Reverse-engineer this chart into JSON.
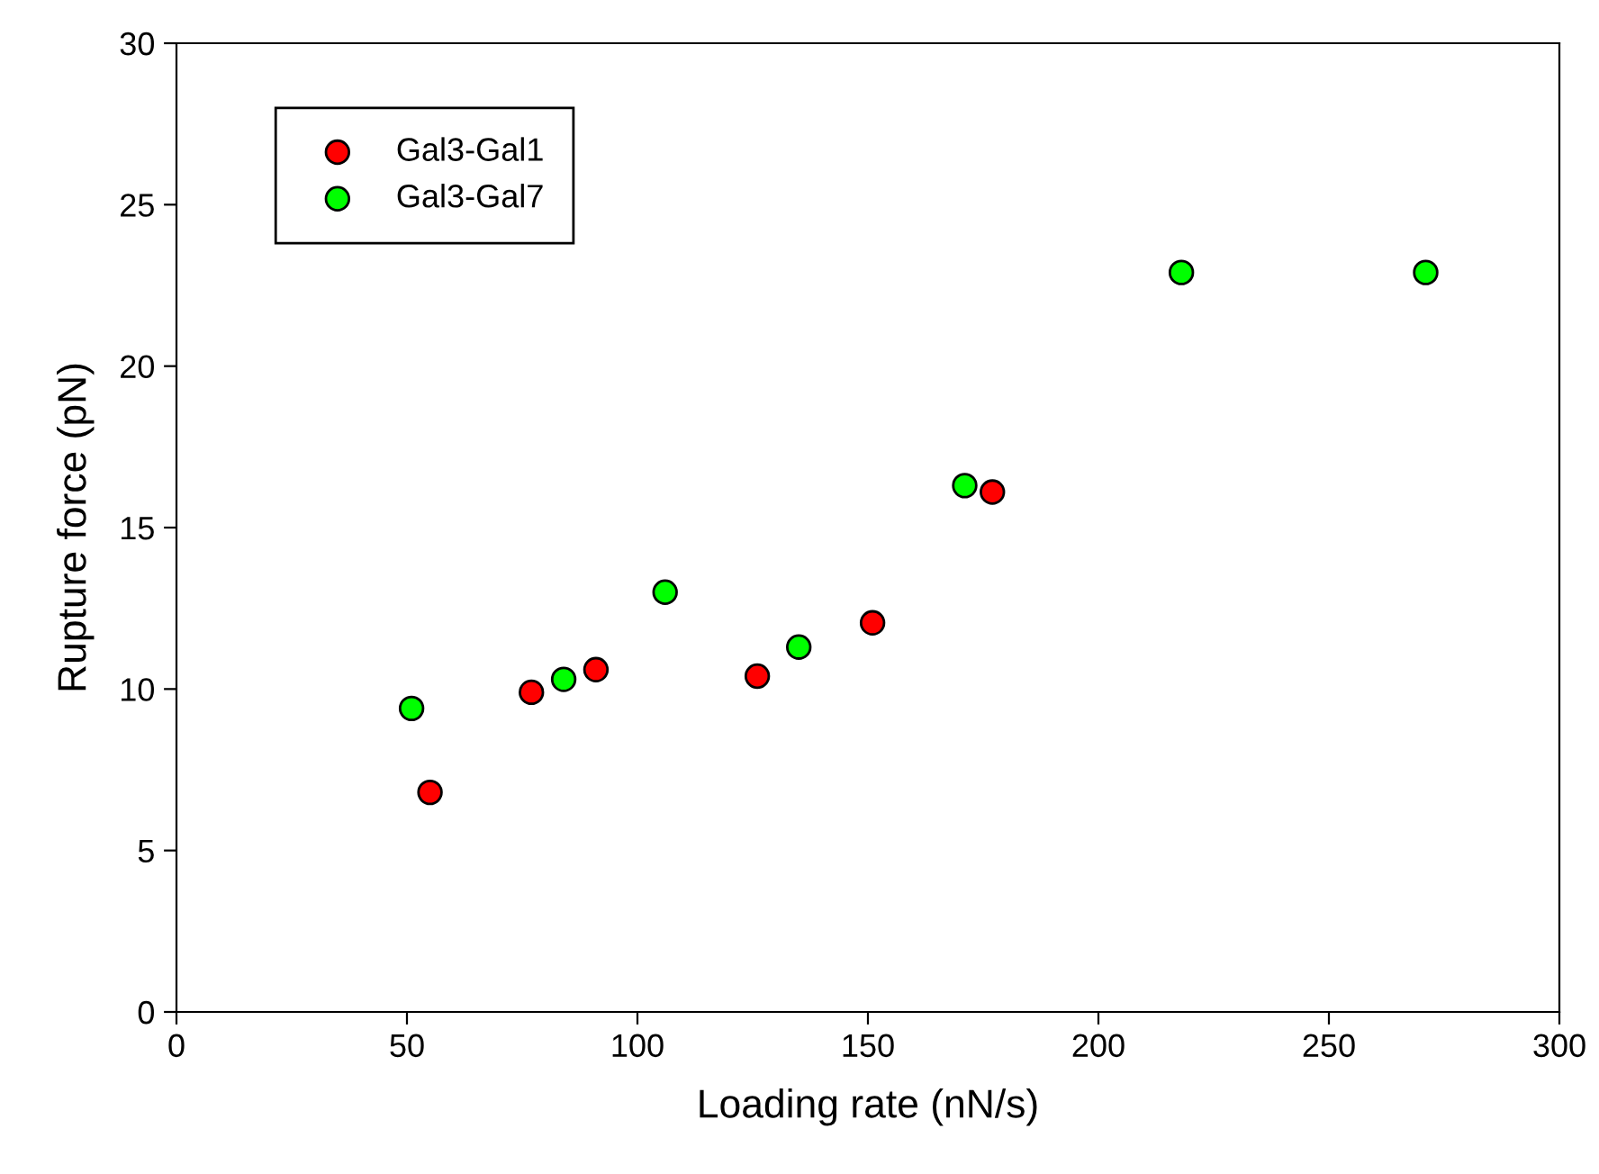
{
  "chart_data": {
    "type": "scatter",
    "xlabel": "Loading rate (nN/s)",
    "ylabel": "Rupture force (pN)",
    "xlim": [
      0,
      300
    ],
    "xticks": [
      0,
      50,
      100,
      150,
      200,
      250,
      300
    ],
    "ylim": [
      0,
      30
    ],
    "yticks": [
      0,
      5,
      10,
      15,
      20,
      25,
      30
    ],
    "grid": false,
    "legend": "top left",
    "marker": "circle",
    "series": [
      {
        "name": "Gal3-Gal1",
        "color": "#ff0000",
        "x": [
          55,
          77,
          91,
          126,
          151,
          177
        ],
        "values": [
          6.8,
          9.9,
          10.6,
          10.4,
          12.05,
          16.1
        ]
      },
      {
        "name": "Gal3-Gal7",
        "color": "#00ff00",
        "x": [
          51,
          84,
          106,
          135,
          171,
          218,
          271
        ],
        "values": [
          9.4,
          10.3,
          13.0,
          11.3,
          16.3,
          22.9,
          22.9
        ]
      }
    ]
  }
}
